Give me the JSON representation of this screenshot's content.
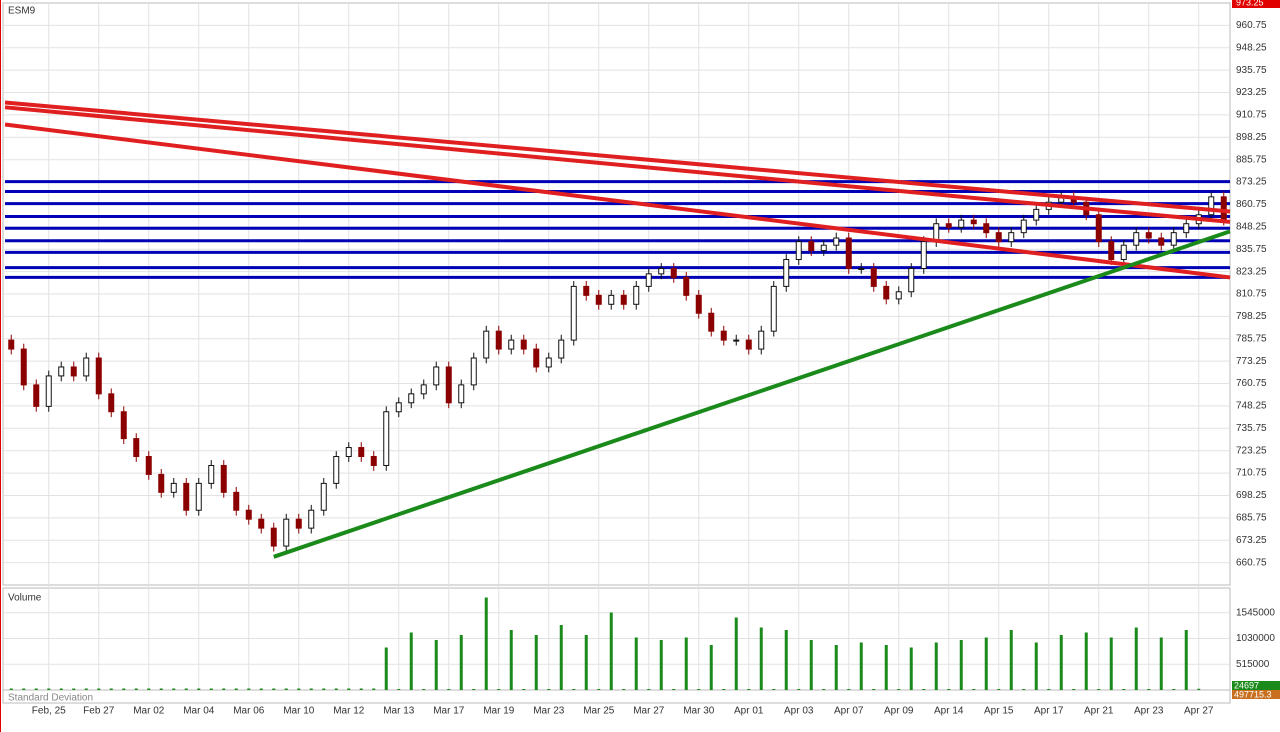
{
  "chart_data": [
    {
      "type": "candlestick",
      "title": "ESM9",
      "x": [
        0,
        1,
        2,
        3,
        4,
        5,
        6,
        7,
        8,
        9,
        10,
        11,
        12,
        13,
        14,
        15,
        16,
        17,
        18,
        19,
        20,
        21,
        22,
        23,
        24,
        25,
        26,
        27,
        28,
        29,
        30,
        31,
        32,
        33,
        34,
        35,
        36,
        37,
        38,
        39,
        40,
        41,
        42,
        43,
        44,
        45,
        46,
        47,
        48,
        49,
        50,
        51,
        52,
        53,
        54,
        55,
        56,
        57,
        58,
        59,
        60,
        61,
        62,
        63,
        64,
        65,
        66,
        67,
        68,
        69,
        70,
        71,
        72,
        73,
        74,
        75,
        76,
        77,
        78,
        79,
        80,
        81,
        82,
        83,
        84,
        85,
        86,
        87,
        88,
        89,
        90,
        91,
        92,
        93,
        94,
        95,
        96,
        97
      ],
      "open": [
        785,
        780,
        760,
        748,
        765,
        770,
        765,
        775,
        755,
        745,
        730,
        720,
        710,
        700,
        705,
        690,
        705,
        715,
        700,
        690,
        685,
        680,
        670,
        685,
        680,
        690,
        705,
        720,
        725,
        720,
        715,
        745,
        750,
        755,
        760,
        770,
        750,
        760,
        775,
        790,
        780,
        785,
        780,
        770,
        775,
        785,
        815,
        810,
        805,
        810,
        805,
        815,
        822,
        825,
        820,
        810,
        800,
        790,
        785,
        785,
        780,
        790,
        815,
        830,
        840,
        835,
        838,
        842,
        825,
        825,
        815,
        808,
        812,
        825,
        840,
        850,
        848,
        852,
        850,
        845,
        840,
        845,
        852,
        858,
        862,
        865,
        862,
        855,
        840,
        830,
        838,
        845,
        842,
        838,
        845,
        850,
        855,
        865
      ],
      "high": [
        788,
        783,
        763,
        768,
        773,
        773,
        778,
        778,
        758,
        748,
        733,
        723,
        713,
        708,
        708,
        708,
        718,
        718,
        703,
        693,
        688,
        683,
        688,
        688,
        693,
        708,
        723,
        728,
        728,
        723,
        748,
        753,
        758,
        763,
        773,
        773,
        763,
        778,
        793,
        793,
        788,
        788,
        783,
        778,
        788,
        818,
        818,
        813,
        813,
        813,
        818,
        825,
        828,
        828,
        823,
        813,
        803,
        793,
        788,
        788,
        793,
        818,
        833,
        843,
        843,
        841,
        845,
        845,
        828,
        828,
        818,
        815,
        828,
        843,
        853,
        853,
        855,
        855,
        853,
        848,
        848,
        855,
        861,
        865,
        868,
        868,
        865,
        858,
        843,
        841,
        848,
        848,
        845,
        848,
        853,
        858,
        868,
        868
      ],
      "low": [
        777,
        757,
        745,
        745,
        762,
        762,
        762,
        752,
        742,
        727,
        717,
        707,
        697,
        697,
        687,
        687,
        702,
        697,
        687,
        682,
        677,
        667,
        667,
        677,
        677,
        687,
        702,
        717,
        717,
        712,
        712,
        742,
        747,
        752,
        757,
        747,
        747,
        757,
        772,
        777,
        777,
        777,
        767,
        767,
        772,
        782,
        807,
        802,
        802,
        802,
        802,
        812,
        819,
        817,
        807,
        797,
        787,
        782,
        782,
        777,
        777,
        787,
        812,
        827,
        832,
        832,
        835,
        822,
        822,
        812,
        805,
        805,
        809,
        822,
        837,
        845,
        845,
        847,
        842,
        837,
        837,
        842,
        849,
        855,
        859,
        859,
        852,
        837,
        827,
        827,
        835,
        839,
        835,
        835,
        842,
        847,
        852,
        849
      ],
      "close": [
        780,
        760,
        748,
        765,
        770,
        765,
        775,
        755,
        745,
        730,
        720,
        710,
        700,
        705,
        690,
        705,
        715,
        700,
        690,
        685,
        680,
        670,
        685,
        680,
        690,
        705,
        720,
        725,
        720,
        715,
        745,
        750,
        755,
        760,
        770,
        750,
        760,
        775,
        790,
        780,
        785,
        780,
        770,
        775,
        785,
        815,
        810,
        805,
        810,
        805,
        815,
        822,
        825,
        820,
        810,
        800,
        790,
        785,
        785,
        780,
        790,
        815,
        830,
        840,
        835,
        838,
        842,
        825,
        825,
        815,
        808,
        812,
        825,
        840,
        850,
        848,
        852,
        850,
        845,
        840,
        845,
        852,
        858,
        862,
        865,
        862,
        855,
        840,
        830,
        838,
        845,
        842,
        838,
        845,
        850,
        855,
        865,
        852
      ],
      "up_color": "#111111",
      "down_color": "#8b0000",
      "xlim": [
        -0.5,
        97.5
      ],
      "xticks": [
        {
          "value": 3,
          "label": "Feb, 25"
        },
        {
          "value": 7,
          "label": "Feb 27"
        },
        {
          "value": 11,
          "label": "Mar 02"
        },
        {
          "value": 15,
          "label": "Mar 04"
        },
        {
          "value": 19,
          "label": "Mar 06"
        },
        {
          "value": 23,
          "label": "Mar 10"
        },
        {
          "value": 27,
          "label": "Mar 12"
        },
        {
          "value": 31,
          "label": "Mar 13"
        },
        {
          "value": 35,
          "label": "Mar 17"
        },
        {
          "value": 39,
          "label": "Mar 19"
        },
        {
          "value": 43,
          "label": "Mar 23"
        },
        {
          "value": 47,
          "label": "Mar 25"
        },
        {
          "value": 51,
          "label": "Mar 27"
        },
        {
          "value": 55,
          "label": "Mar 30"
        },
        {
          "value": 59,
          "label": "Apr 01"
        },
        {
          "value": 63,
          "label": "Apr 03"
        },
        {
          "value": 67,
          "label": "Apr 07"
        },
        {
          "value": 71,
          "label": "Apr 09"
        },
        {
          "value": 75,
          "label": "Apr 14"
        },
        {
          "value": 79,
          "label": "Apr 15"
        },
        {
          "value": 83,
          "label": "Apr 17"
        },
        {
          "value": 87,
          "label": "Apr 21"
        },
        {
          "value": 91,
          "label": "Apr 23"
        },
        {
          "value": 95,
          "label": "Apr 27"
        }
      ],
      "ylim": [
        648.25,
        973.25
      ],
      "yticks": [
        660.75,
        673.25,
        685.75,
        698.25,
        710.75,
        723.25,
        735.75,
        748.25,
        760.75,
        773.25,
        785.75,
        798.25,
        810.75,
        823.25,
        835.75,
        848.25,
        860.75,
        873.25,
        885.75,
        898.25,
        910.75,
        923.25,
        935.75,
        948.25,
        960.75
      ],
      "grid": true,
      "levels": {
        "color": "#0000b4",
        "values": [
          873.5,
          868,
          861.25,
          854,
          847.5,
          840.5,
          834,
          825.5,
          820
        ]
      },
      "trendlines": [
        {
          "color": "#e02020",
          "x": [
            -0.5,
            97.5
          ],
          "y": [
            917.7,
            856.8
          ]
        },
        {
          "color": "#e02020",
          "x": [
            -0.5,
            97.5
          ],
          "y": [
            915,
            851
          ]
        },
        {
          "color": "#e02020",
          "x": [
            -0.5,
            97.5
          ],
          "y": [
            905.4,
            820
          ]
        },
        {
          "color": "#1a8a1a",
          "x": [
            21,
            97.5
          ],
          "y": [
            664,
            845.7
          ]
        }
      ]
    },
    {
      "type": "bar",
      "title": "Volume",
      "color": "#1a8a1a",
      "values": [
        30000,
        30000,
        30000,
        30000,
        30000,
        30000,
        30000,
        30000,
        30000,
        30000,
        30000,
        30000,
        30000,
        30000,
        30000,
        30000,
        30000,
        30000,
        30000,
        30000,
        30000,
        30000,
        30000,
        30000,
        30000,
        30000,
        30000,
        30000,
        30000,
        30000,
        850000,
        20000,
        1150000,
        20000,
        1000000,
        20000,
        1100000,
        20000,
        1850000,
        20000,
        1200000,
        20000,
        1100000,
        20000,
        1300000,
        20000,
        1100000,
        20000,
        1550000,
        20000,
        1050000,
        20000,
        1000000,
        20000,
        1050000,
        20000,
        900000,
        20000,
        1450000,
        20000,
        1250000,
        20000,
        1200000,
        20000,
        1000000,
        20000,
        900000,
        20000,
        950000,
        20000,
        900000,
        20000,
        850000,
        20000,
        950000,
        20000,
        1000000,
        20000,
        1050000,
        20000,
        1200000,
        20000,
        950000,
        20000,
        1100000,
        20000,
        1150000,
        20000,
        1050000,
        20000,
        1250000,
        20000,
        1050000,
        20000,
        1200000,
        24697
      ],
      "ylim": [
        0,
        2000000
      ],
      "yticks": [
        515000,
        1030000,
        1545000
      ]
    },
    {
      "type": "indicator",
      "title": "Standard Deviation",
      "value": 497715.3,
      "color": "#c87020"
    }
  ]
}
